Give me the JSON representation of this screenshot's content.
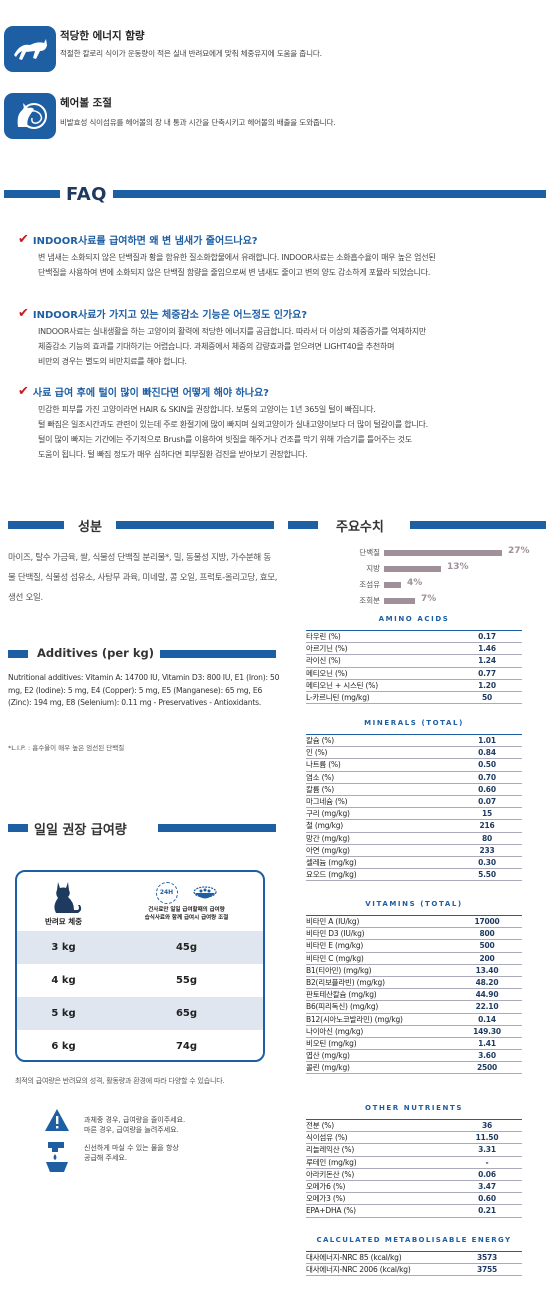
{
  "features": [
    {
      "title": "적당한 에너지 함량",
      "desc": "적절한 칼로리 식이가 운동량이 적은 실내 반려묘에게 맞춰 체중유지에 도움을 줍니다.",
      "icon": "cat-running-icon"
    },
    {
      "title": "헤어볼 조절",
      "desc": "비발효성 식이섬유를 헤어볼의 장 내 통과 시간을 단축시키고 헤어볼의 배출을 도와줍니다.",
      "icon": "cat-hairball-icon"
    }
  ],
  "faq": {
    "title": "FAQ",
    "items": [
      {
        "q": "INDOOR사료를 급여하면 왜 변 냄새가 줄어드나요?",
        "lines": [
          "변 냄새는 소화되지 않은 단백질과 황을 함유한 질소화합물에서 유래합니다. INDOOR사료는 소화흡수율이 매우 높은 엄선된",
          "단백질을 사용하여 변에 소화되지 않은 단백질 함량을 줄임으로써 변 냄새도 줄이고 변의 양도 감소하게 포뮬라 되었습니다."
        ]
      },
      {
        "q": "INDOOR사료가 가지고 있는 체중감소 기능은 어느정도 인가요?",
        "lines": [
          "INDOOR사료는 실내생활을 하는 고양이의 활력에 적당한 에너지를 공급합니다. 따라서 더 이상의 체중증가를 억제하지만",
          "체중감소 기능의 효과를 기대하기는 어렵습니다. 과체중에서 체중의 감량효과를 얻으려면 LIGHT40을 추천하며",
          "비만의 경우는 별도의 비만치료를 해야 합니다."
        ]
      },
      {
        "q": "사료 급여 후에 털이 많이 빠진다면 어떻게 해야 하나요?",
        "lines": [
          "민감한 피부를 가진 고양이라면 HAIR & SKIN을 권장합니다. 보통의 고양이는 1년 365일 털이 빠집니다.",
          "털 빠짐은 일조시간과도 관련이 있는데 주로 환절기에 많이 빠지며 실외고양이가 실내고양이보다 더 많이 털갈이를 합니다.",
          "털이 많이 빠지는 기간에는 주기적으로 Brush를 이용하여 빗질을 해주거나 건조를 막기 위해 가습기를 틀어주는 것도",
          "도움이 됩니다. 털 빠짐 정도가 매우 심하다면 피부질환 검진을 받아보기 권장합니다."
        ]
      }
    ]
  },
  "ingredients": {
    "title": "성분",
    "text": "마이즈, 탈수 가금육, 쌀, 식물성 단백질 분리물*, 밀, 동물성 지방, 가수분해 동물 단백질, 식물성 섬유소, 사탕무 과육, 미네랄, 콩 오일, 프럭토-올리고당, 효모, 생선 오일."
  },
  "additives": {
    "title": "Additives (per kg)",
    "text": "Nutritional additives: Vitamin A: 14700 IU, Vitamin D3: 800 IU, E1 (Iron): 50 mg, E2 (Iodine): 5 mg, E4 (Copper): 5 mg, E5 (Manganese): 65 mg, E6 (Zinc): 194 mg, E8 (Selenium): 0.11 mg - Preservatives - Antioxidants.",
    "note": "*L.I.P. : 흡수율이 매우 높은 엄선된 단백질"
  },
  "feeding": {
    "title": "일일 권장 급여량",
    "col_weight": "반려묘 체중",
    "col_24h": "24H",
    "col_desc1": "건사료만 일일 급여할때의 급여량",
    "col_desc2": "습식사료와 함께 급여시 급여량 조절",
    "rows": [
      {
        "weight": "3 kg",
        "grams": "45g"
      },
      {
        "weight": "4 kg",
        "grams": "55g"
      },
      {
        "weight": "5 kg",
        "grams": "65g"
      },
      {
        "weight": "6 kg",
        "grams": "74g"
      }
    ],
    "footnote": "최적의 급여량은 반려묘의 성격, 활동량과 환경에 따라 다양할 수 있습니다.",
    "warning1": [
      "과체중 경우, 급여량을 줄이주세요.",
      "마른 경우, 급여량을 늘려주세요."
    ],
    "warning2": [
      "신선하게 마실 수 있는 물을 항상",
      "공급해 주세요."
    ]
  },
  "key_values": {
    "title": "주요수치",
    "bars": [
      {
        "label": "단백질",
        "value": 27,
        "text": "27%"
      },
      {
        "label": "지방",
        "value": 13,
        "text": "13%"
      },
      {
        "label": "조섬유",
        "value": 4,
        "text": "4%"
      },
      {
        "label": "조회분",
        "value": 7,
        "text": "7%"
      }
    ]
  },
  "tables": {
    "amino": {
      "title": "AMINO ACIDS",
      "rows": [
        [
          "타우린 (%)",
          "0.17"
        ],
        [
          "아르기닌 (%)",
          "1.46"
        ],
        [
          "라이신 (%)",
          "1.24"
        ],
        [
          "메티오닌 (%)",
          "0.77"
        ],
        [
          "메티오닌 + 시스틴 (%)",
          "1.20"
        ],
        [
          "L-카르니틴 (mg/kg)",
          "50"
        ]
      ]
    },
    "minerals": {
      "title": "MINERALS (TOTAL)",
      "rows": [
        [
          "칼슘 (%)",
          "1.01"
        ],
        [
          "인 (%)",
          "0.84"
        ],
        [
          "나트륨 (%)",
          "0.50"
        ],
        [
          "염소 (%)",
          "0.70"
        ],
        [
          "칼륨 (%)",
          "0.60"
        ],
        [
          "마그네슘 (%)",
          "0.07"
        ],
        [
          "구리 (mg/kg)",
          "15"
        ],
        [
          "철 (mg/kg)",
          "216"
        ],
        [
          "망간 (mg/kg)",
          "80"
        ],
        [
          "아연 (mg/kg)",
          "233"
        ],
        [
          "셀레늄 (mg/kg)",
          "0.30"
        ],
        [
          "요오드 (mg/kg)",
          "5.50"
        ]
      ]
    },
    "vitamins": {
      "title": "VITAMINS (TOTAL)",
      "rows": [
        [
          "비타민 A (IU/kg)",
          "17000"
        ],
        [
          "비타민 D3 (IU/kg)",
          "800"
        ],
        [
          "비타민 E (mg/kg)",
          "500"
        ],
        [
          "비타민 C (mg/kg)",
          "200"
        ],
        [
          "B1(티아민) (mg/kg)",
          "13.40"
        ],
        [
          "B2(리보플라빈) (mg/kg)",
          "48.20"
        ],
        [
          "판토테산칼슘 (mg/kg)",
          "44.90"
        ],
        [
          "B6(피리독신) (mg/kg)",
          "22.10"
        ],
        [
          "B12(시아노코발라민) (mg/kg)",
          "0.14"
        ],
        [
          "나이아신 (mg/kg)",
          "149.30"
        ],
        [
          "비오틴 (mg/kg)",
          "1.41"
        ],
        [
          "엽산 (mg/kg)",
          "3.60"
        ],
        [
          "콜린 (mg/kg)",
          "2500"
        ]
      ]
    },
    "other": {
      "title": "OTHER NUTRIENTS",
      "rows": [
        [
          "전분 (%)",
          "36"
        ],
        [
          "식이섬유 (%)",
          "11.50"
        ],
        [
          "리놀레익산 (%)",
          "3.31"
        ],
        [
          "루테인 (mg/kg)",
          "-"
        ],
        [
          "아라키돈산 (%)",
          "0.06"
        ],
        [
          "오메가6 (%)",
          "3.47"
        ],
        [
          "오메가3 (%)",
          "0.60"
        ],
        [
          "EPA+DHA (%)",
          "0.21"
        ]
      ]
    },
    "energy": {
      "title": "CALCULATED METABOLISABLE ENERGY",
      "rows": [
        [
          "대사에너지-NRC 85 (kcal/kg)",
          "3573"
        ],
        [
          "대사에너지-NRC 2006 (kcal/kg)",
          "3755"
        ]
      ]
    }
  },
  "colors": {
    "brand_blue": "#1e5ea3",
    "check_red": "#c41a1a",
    "bar": "#a0909a"
  }
}
